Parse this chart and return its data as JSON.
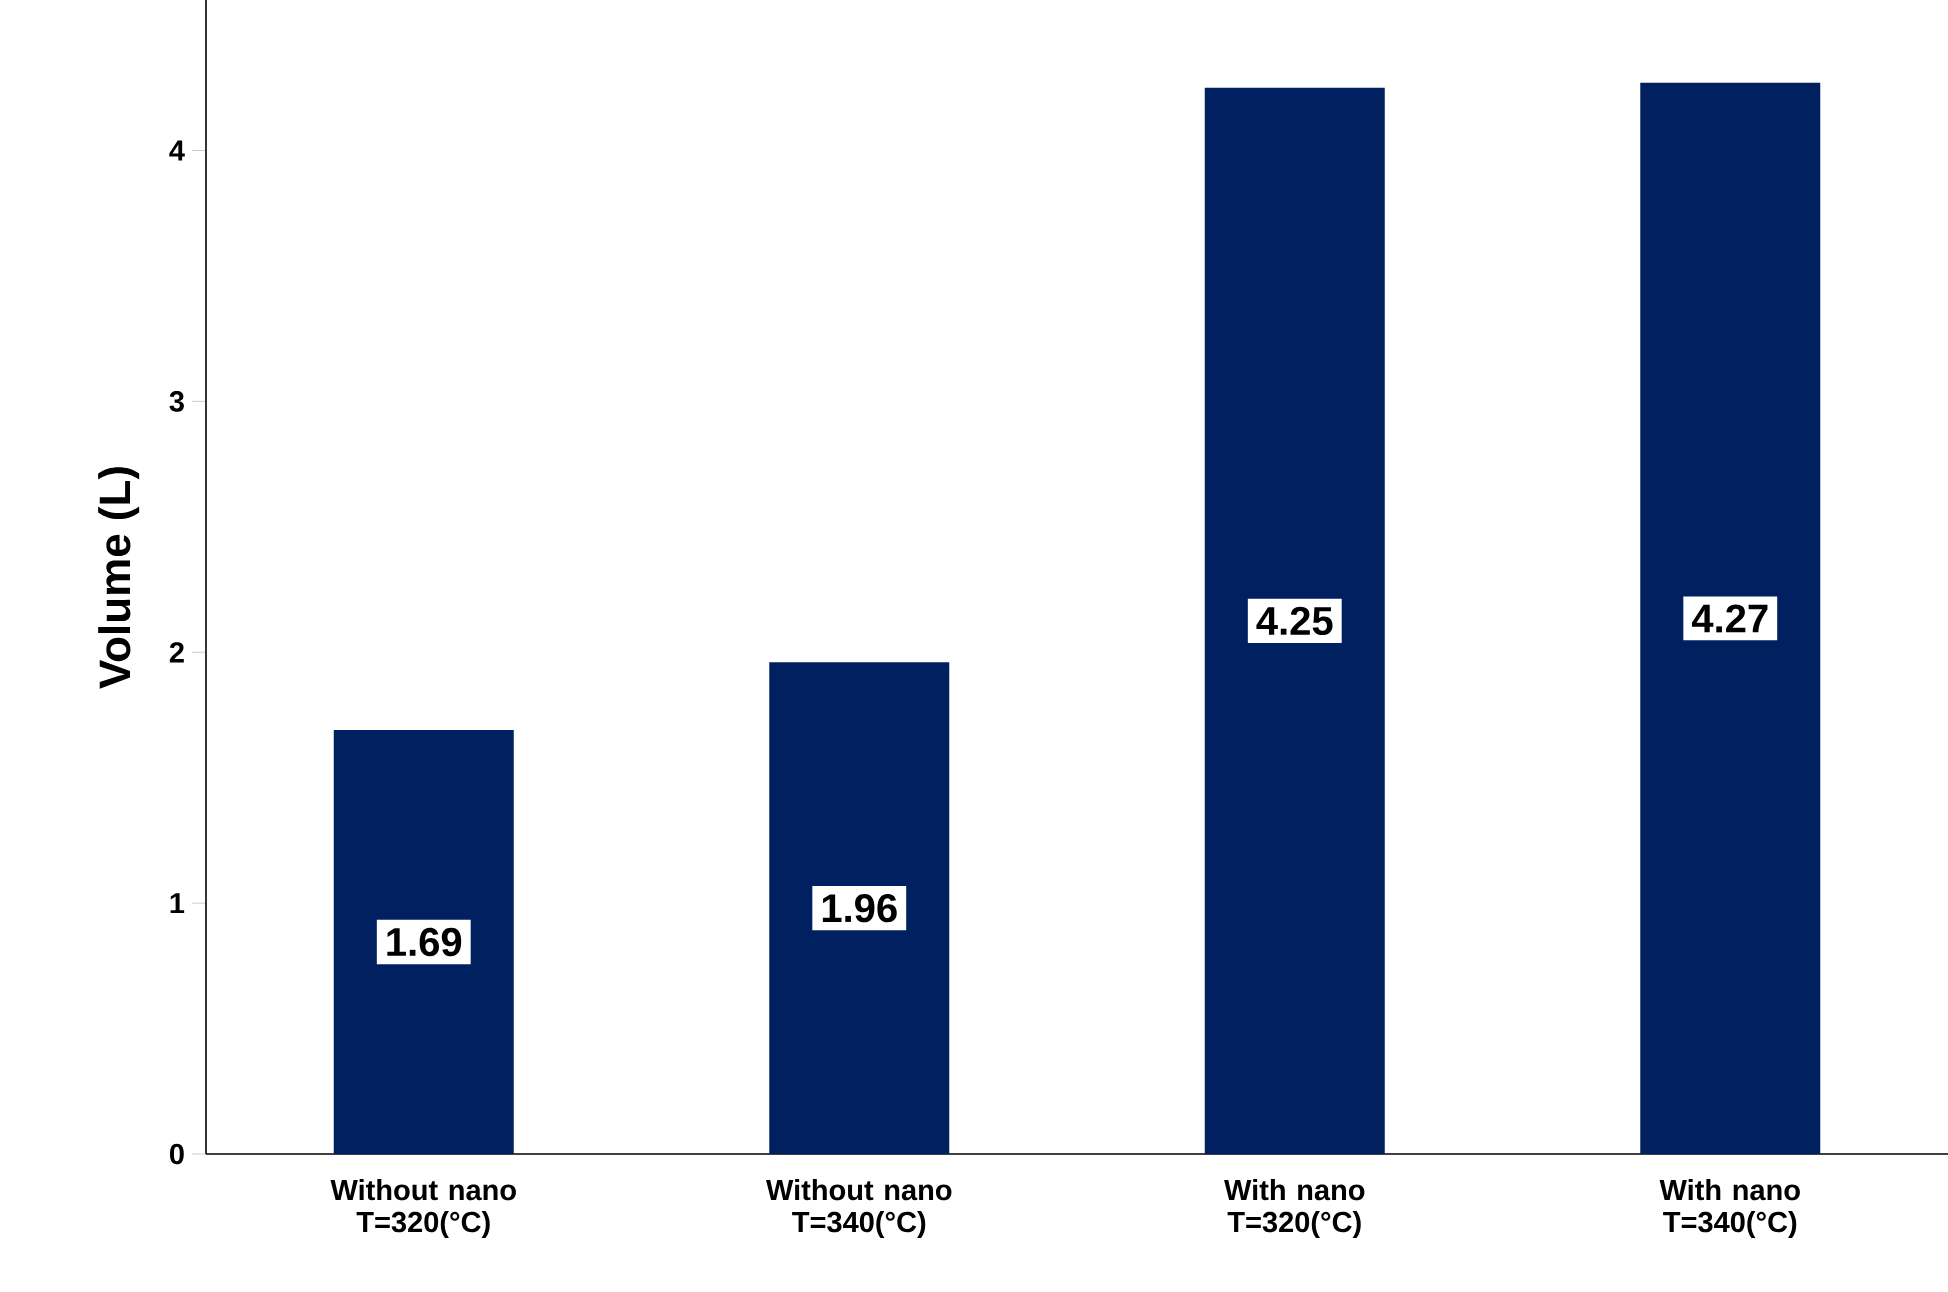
{
  "chart_data": {
    "type": "bar",
    "ylabel": "Volume (L)",
    "categories": [
      "Without nano T=320(°C)",
      "Without nano T=340(°C)",
      "With nano T=320(°C)",
      "With nano T=340(°C)"
    ],
    "values": [
      1.69,
      1.96,
      4.25,
      4.27
    ],
    "value_labels": [
      "1.69",
      "1.96",
      "4.25",
      "4.27"
    ],
    "color": "#002060",
    "ylim": [
      0,
      4.6
    ],
    "yticks": [
      0,
      1,
      2,
      3,
      4
    ]
  }
}
